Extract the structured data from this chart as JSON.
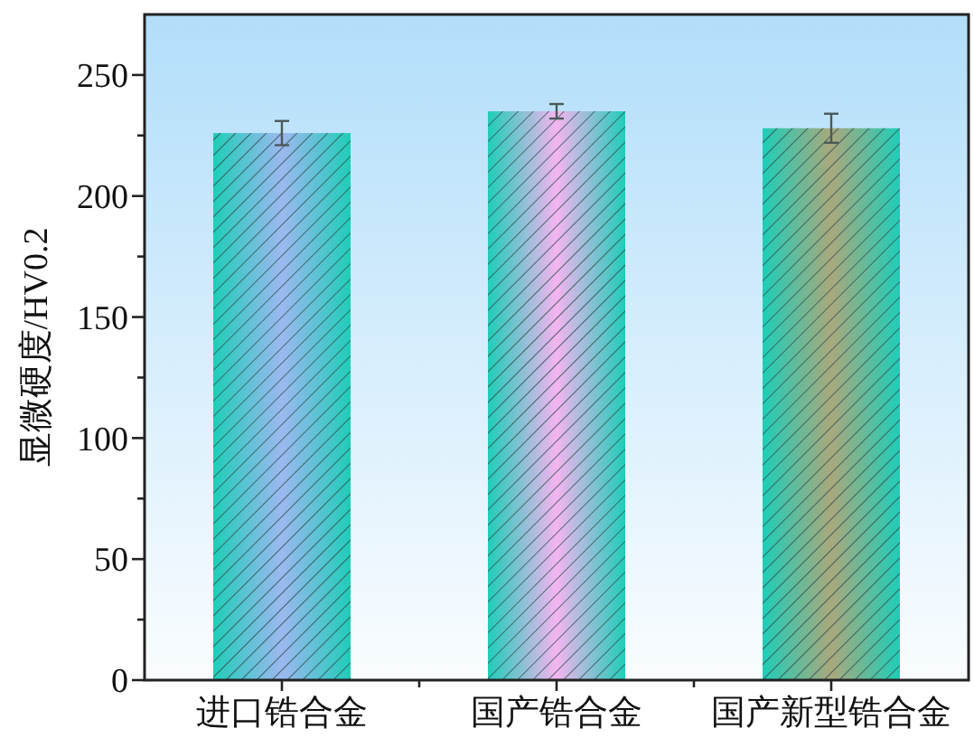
{
  "chart_data": {
    "type": "bar",
    "ylabel": "显微硬度/HV0.2",
    "categories": [
      "进口锆合金",
      "国产锆合金",
      "国产新型锆合金"
    ],
    "values": [
      226,
      235,
      228
    ],
    "errors": [
      5,
      3,
      6
    ],
    "colors": [
      "#9db8f0",
      "#f5b4f0",
      "#aaa87c"
    ],
    "ylim": [
      0,
      275
    ],
    "yticks": [
      0,
      {
        "value": 25,
        "label": null
      },
      50,
      {
        "value": 75,
        "label": null
      },
      100,
      {
        "value": 125,
        "label": null
      },
      150,
      {
        "value": 175,
        "label": null
      },
      200,
      {
        "value": 225,
        "label": null
      },
      250
    ]
  }
}
